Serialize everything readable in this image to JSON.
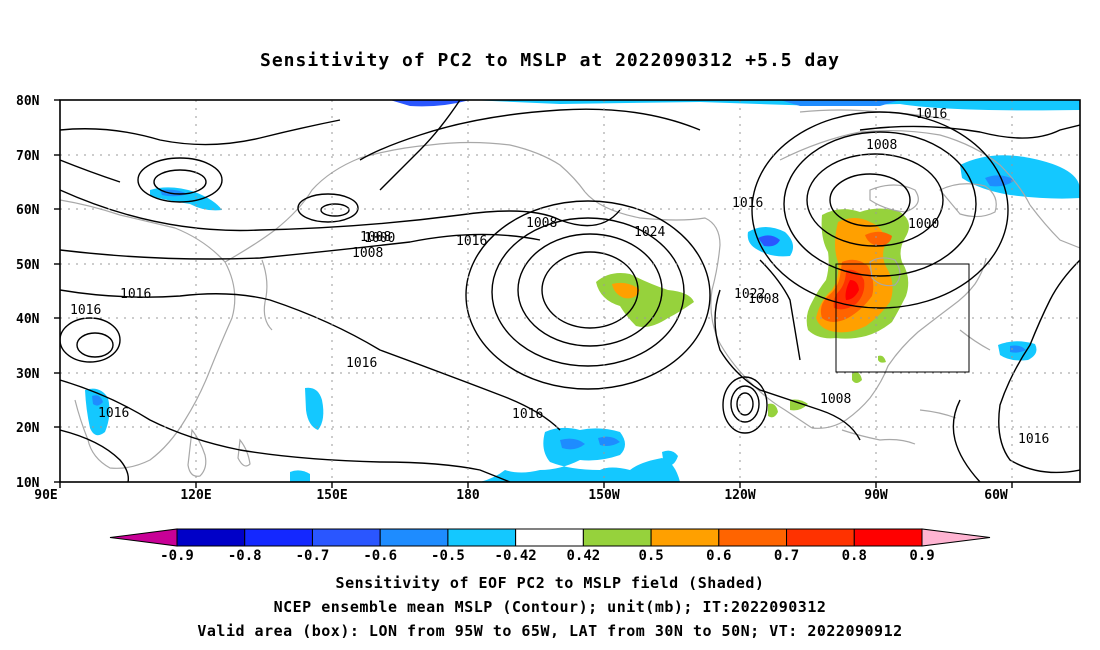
{
  "title": "Sensitivity of PC2 to MSLP at 2022090312 +5.5 day",
  "lat_labels": [
    "80N",
    "70N",
    "60N",
    "50N",
    "40N",
    "30N",
    "20N",
    "10N"
  ],
  "lon_labels": [
    "90E",
    "120E",
    "150E",
    "180",
    "150W",
    "120W",
    "90W",
    "60W"
  ],
  "contour_labels": [
    "1016",
    "1008",
    "1016",
    "1000",
    "1008",
    "1008",
    "1016",
    "1024",
    "1016",
    "1000",
    "1008",
    "1016",
    "1016",
    "1022",
    "1008",
    "1016",
    "1016",
    "1008",
    "1016"
  ],
  "colorbar": {
    "labels": [
      "-0.9",
      "-0.8",
      "-0.7",
      "-0.6",
      "-0.5",
      "-0.42",
      "0.42",
      "0.5",
      "0.6",
      "0.7",
      "0.8",
      "0.9"
    ],
    "colors": [
      "#0000c8",
      "#1428ff",
      "#2a56ff",
      "#1e8cff",
      "#14c8ff",
      "#ffffff",
      "#96d23c",
      "#ffa000",
      "#ff6400",
      "#ff3200",
      "#ff0000"
    ],
    "end_left": "#c80096",
    "end_right": "#ffb4d2"
  },
  "captions": [
    "Sensitivity of EOF PC2 to MSLP field (Shaded)",
    "NCEP ensemble mean MSLP (Contour); unit(mb); IT:2022090312",
    "Valid area (box): LON from 95W to 65W, LAT from 30N to 50N; VT: 2022090912"
  ]
}
